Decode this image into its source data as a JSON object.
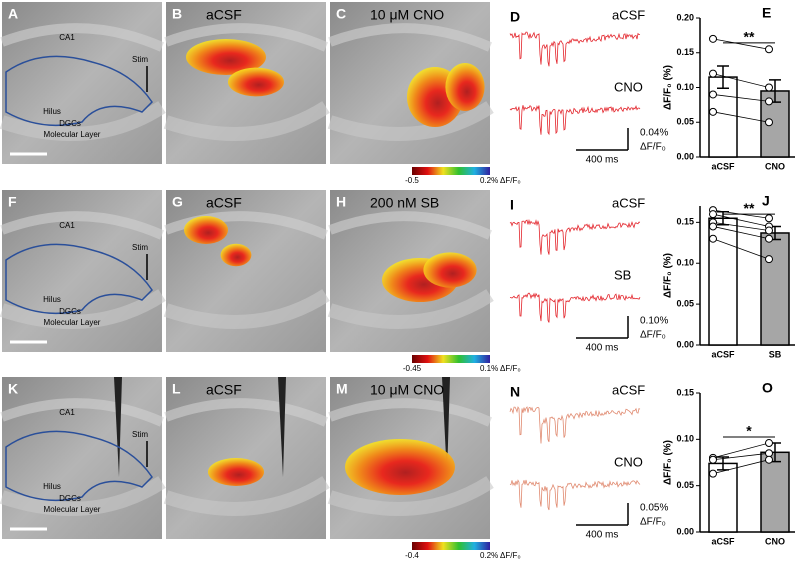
{
  "rows": [
    {
      "image_panels": [
        {
          "letter": "A",
          "labels": {
            "ca1": "CA1",
            "stim": "Stim",
            "hilus": "Hilus",
            "dgcs": "DGCs",
            "ml": "Molecular Layer"
          }
        },
        {
          "letter": "B",
          "title": "aCSF"
        },
        {
          "letter": "C",
          "title": "10 μM CNO"
        }
      ],
      "colorbar": {
        "min": "-0.5",
        "max": "0.2% ΔF/F₀"
      },
      "traces": {
        "letter": "D",
        "top": "aCSF",
        "bottom": "CNO",
        "scale_y": "0.04%",
        "scale_unit": "ΔF/F₀",
        "scale_x": "400 ms",
        "color": "#e3242b"
      }
    },
    {
      "image_panels": [
        {
          "letter": "F",
          "labels": {
            "ca1": "CA1",
            "stim": "Stim",
            "hilus": "Hilus",
            "dgcs": "DGCs",
            "ml": "Molecular Layer"
          }
        },
        {
          "letter": "G",
          "title": "aCSF"
        },
        {
          "letter": "H",
          "title": "200 nM SB"
        }
      ],
      "colorbar": {
        "min": "-0.45",
        "max": "0.1% ΔF/F₀"
      },
      "traces": {
        "letter": "I",
        "top": "aCSF",
        "bottom": "SB",
        "scale_y": "0.10%",
        "scale_unit": "ΔF/F₀",
        "scale_x": "400 ms",
        "color": "#e3242b"
      }
    },
    {
      "image_panels": [
        {
          "letter": "K",
          "labels": {
            "ca1": "CA1",
            "stim": "Stim",
            "hilus": "Hilus",
            "dgcs": "DGCs",
            "ml": "Molecular Layer"
          }
        },
        {
          "letter": "L",
          "title": "aCSF"
        },
        {
          "letter": "M",
          "title": "10 μM CNO"
        }
      ],
      "colorbar": {
        "min": "-0.4",
        "max": "0.2% ΔF/F₀"
      },
      "traces": {
        "letter": "N",
        "top": "aCSF",
        "bottom": "CNO",
        "scale_y": "0.05%",
        "scale_unit": "ΔF/F₀",
        "scale_x": "400 ms",
        "color": "#e08a70"
      }
    }
  ],
  "chart_data": [
    {
      "type": "bar",
      "title": "E",
      "y_label": "ΔF/F₀ (%)",
      "categories": [
        "aCSF",
        "CNO"
      ],
      "values": [
        0.115,
        0.095
      ],
      "errors": [
        0.016,
        0.016
      ],
      "colors": [
        "#ffffff",
        "#a6a6a6"
      ],
      "paired_points": [
        [
          0.17,
          0.155
        ],
        [
          0.12,
          0.1
        ],
        [
          0.09,
          0.08
        ],
        [
          0.065,
          0.05
        ]
      ],
      "significance": "**",
      "ylim": [
        0,
        0.2
      ],
      "yticks": [
        {
          "value": 0,
          "label": "0.00"
        },
        {
          "value": 0.05,
          "label": "0.05"
        },
        {
          "value": 0.1,
          "label": "0.10"
        },
        {
          "value": 0.15,
          "label": "0.15"
        },
        {
          "value": 0.2,
          "label": "0.20"
        }
      ]
    },
    {
      "type": "bar",
      "title": "J",
      "y_label": "ΔF/F₀ (%)",
      "categories": [
        "aCSF",
        "SB"
      ],
      "values": [
        0.155,
        0.137
      ],
      "errors": [
        0.008,
        0.008
      ],
      "colors": [
        "#ffffff",
        "#a6a6a6"
      ],
      "paired_points": [
        [
          0.165,
          0.155
        ],
        [
          0.16,
          0.145
        ],
        [
          0.15,
          0.14
        ],
        [
          0.145,
          0.13
        ],
        [
          0.13,
          0.105
        ]
      ],
      "significance": "**",
      "ylim": [
        0,
        0.17
      ],
      "yticks": [
        {
          "value": 0,
          "label": "0.00"
        },
        {
          "value": 0.05,
          "label": "0.05"
        },
        {
          "value": 0.1,
          "label": "0.10"
        },
        {
          "value": 0.15,
          "label": "0.15"
        }
      ]
    },
    {
      "type": "bar",
      "title": "O",
      "y_label": "ΔF/F₀ (%)",
      "categories": [
        "aCSF",
        "CNO"
      ],
      "values": [
        0.074,
        0.086
      ],
      "errors": [
        0.007,
        0.01
      ],
      "colors": [
        "#ffffff",
        "#a6a6a6"
      ],
      "paired_points": [
        [
          0.08,
          0.096
        ],
        [
          0.078,
          0.085
        ],
        [
          0.063,
          0.078
        ]
      ],
      "significance": "*",
      "ylim": [
        0,
        0.15
      ],
      "yticks": [
        {
          "value": 0,
          "label": "0.00"
        },
        {
          "value": 0.05,
          "label": "0.05"
        },
        {
          "value": 0.1,
          "label": "0.10"
        },
        {
          "value": 0.15,
          "label": "0.15"
        }
      ]
    }
  ]
}
